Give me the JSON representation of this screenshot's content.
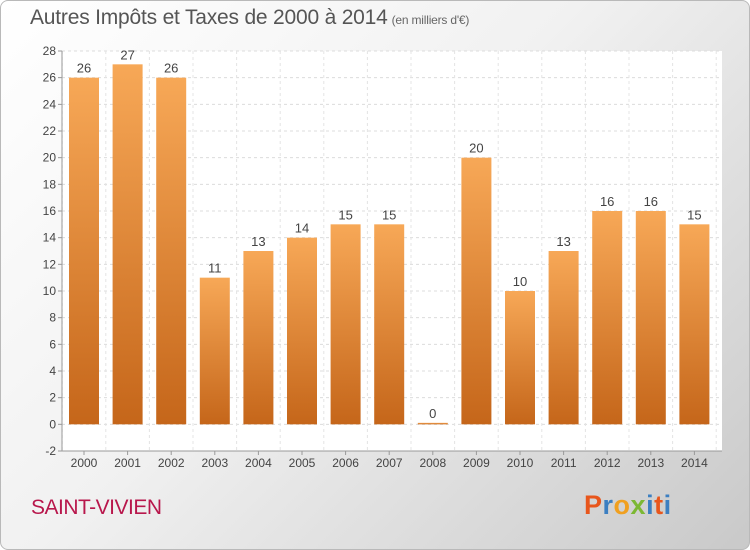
{
  "title": "Autres Impôts et Taxes de 2000 à 2014",
  "unit_note": "(en milliers d'€)",
  "commune": "SAINT-VIVIEN",
  "logo": {
    "letters": [
      "P",
      "r",
      "o",
      "x",
      "i",
      "t",
      "i"
    ],
    "colors": [
      "#e8561c",
      "#3c7fc1",
      "#f0a020",
      "#7cb833",
      "#3c7fc1",
      "#e8561c",
      "#3c7fc1"
    ]
  },
  "colors": {
    "bar_light": "#f7a857",
    "bar_dark": "#c5661a"
  },
  "chart_data": {
    "type": "bar",
    "categories": [
      "2000",
      "2001",
      "2002",
      "2003",
      "2004",
      "2005",
      "2006",
      "2007",
      "2008",
      "2009",
      "2010",
      "2011",
      "2012",
      "2013",
      "2014"
    ],
    "values": [
      26,
      27,
      26,
      11,
      13,
      14,
      15,
      15,
      0,
      20,
      10,
      13,
      16,
      16,
      15
    ],
    "ylim": [
      -2,
      28
    ],
    "yticks": [
      -2,
      0,
      2,
      4,
      6,
      8,
      10,
      12,
      14,
      16,
      18,
      20,
      22,
      24,
      26,
      28
    ],
    "grid": true
  }
}
